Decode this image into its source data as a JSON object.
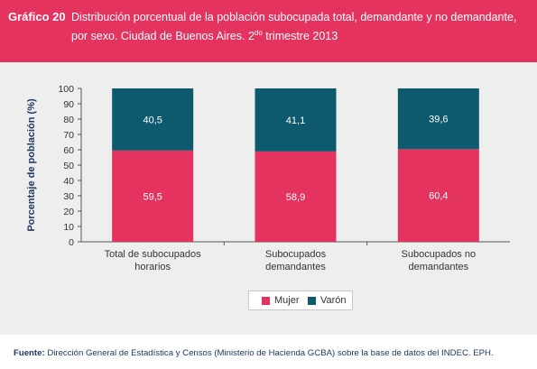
{
  "header": {
    "label": "Gráfico 20",
    "title_line1": "Distribución porcentual de la población subocupada total, demandante y no demandante,",
    "title_line2_a": "por sexo. Ciudad de Buenos Aires. 2",
    "title_line2_sup": "do",
    "title_line2_b": " trimestre 2013"
  },
  "footer": {
    "source_label": "Fuente:",
    "source_text": " Dirección General de Estadística y Censos (Ministerio de Hacienda GCBA) sobre la base de datos del INDEC. EPH."
  },
  "colors": {
    "header_bg": "#e4335e",
    "mujer": "#e4335e",
    "varon": "#0d5a6e"
  },
  "chart_data": {
    "type": "bar",
    "stacked": true,
    "ylabel": "Porcentaje de población (%)",
    "ylim": [
      0,
      100
    ],
    "yticks": [
      0,
      10,
      20,
      30,
      40,
      50,
      60,
      70,
      80,
      90,
      100
    ],
    "categories": [
      [
        "Total de subocupados",
        "horarios"
      ],
      [
        "Subocupados",
        "demandantes"
      ],
      [
        "Subocupados no",
        "demandantes"
      ]
    ],
    "series": [
      {
        "name": "Mujer",
        "values": [
          59.5,
          58.9,
          60.4
        ],
        "labels": [
          "59,5",
          "58,9",
          "60,4"
        ]
      },
      {
        "name": "Varón",
        "values": [
          40.5,
          41.1,
          39.6
        ],
        "labels": [
          "40,5",
          "41,1",
          "39,6"
        ]
      }
    ],
    "legend_position": "bottom-center",
    "grid": false
  }
}
